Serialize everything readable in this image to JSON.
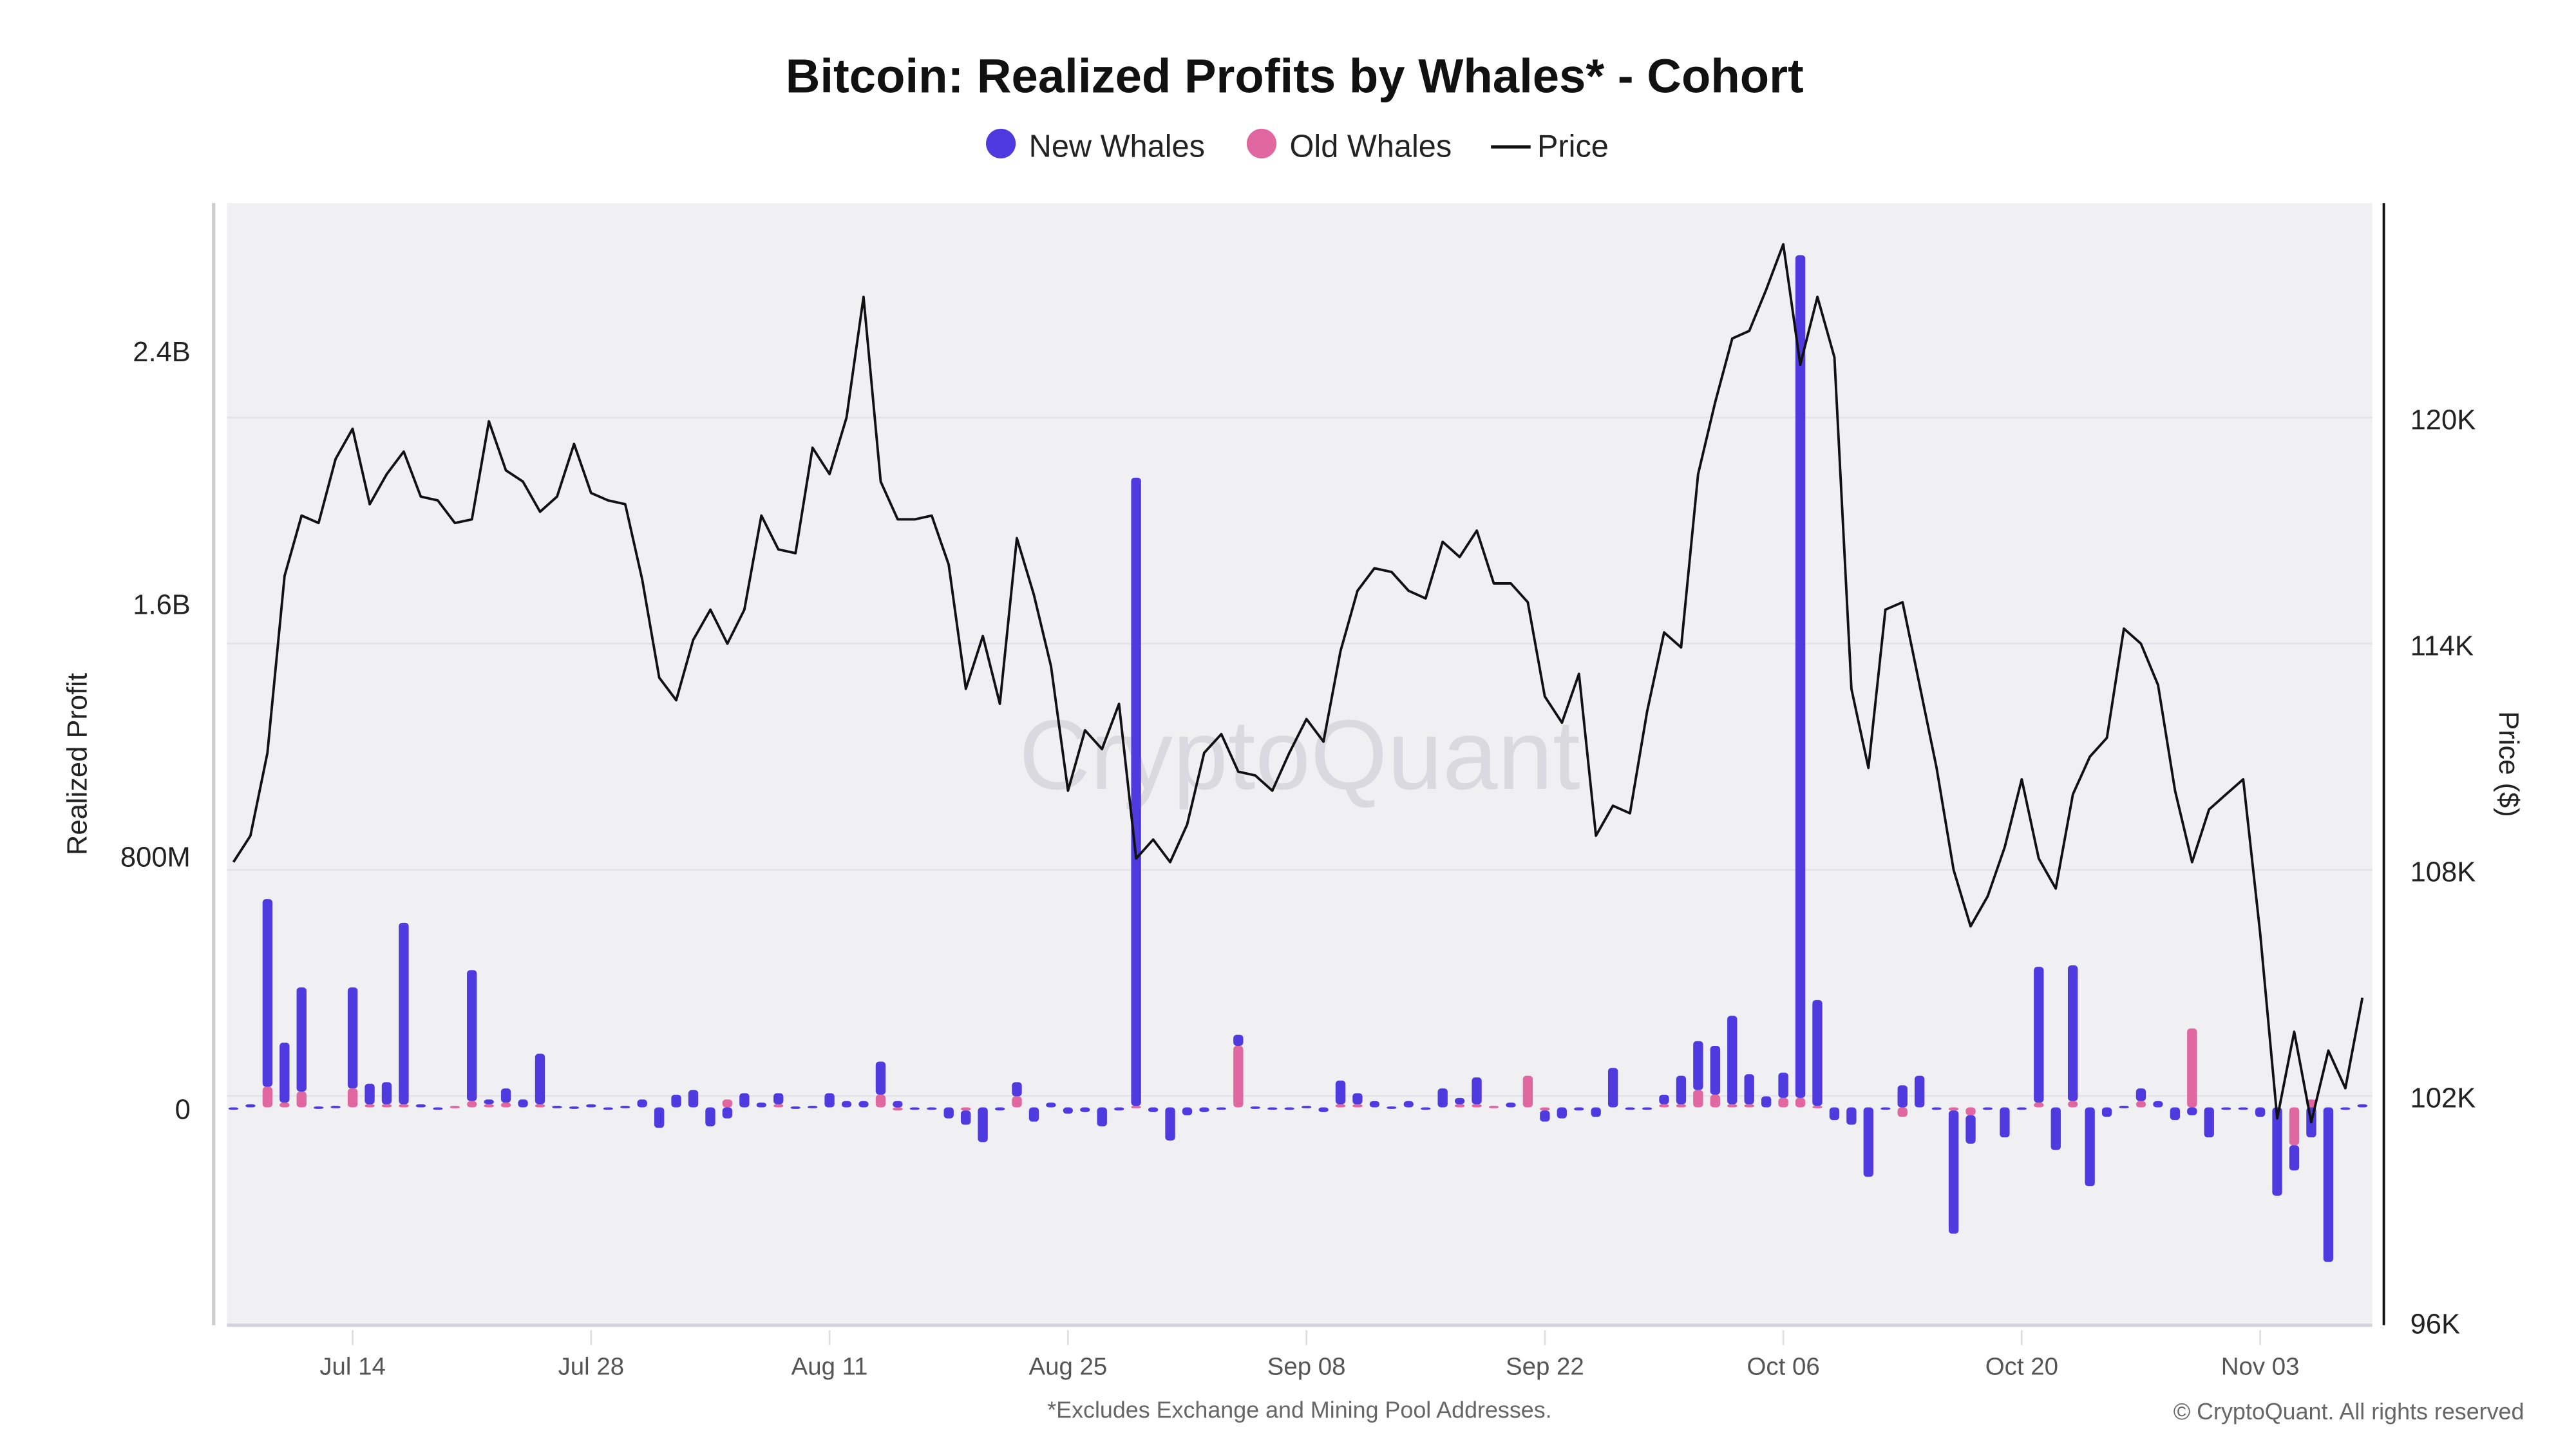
{
  "chart_data": {
    "type": "bar",
    "title": "Bitcoin: Realized Profits by Whales* - Cohort",
    "footnote": "*Excludes Exchange and Mining Pool Addresses.",
    "copyright": "© CryptoQuant. All rights reserved",
    "watermark": "CryptoQuant",
    "ylabel": "Realized Profit",
    "y2label": "Price ($)",
    "ylim": [
      -850,
      2900
    ],
    "y2lim": [
      96,
      125.8
    ],
    "yticks": [
      {
        "v": 0,
        "label": "0"
      },
      {
        "v": 800,
        "label": "800M"
      },
      {
        "v": 1600,
        "label": "1.6B"
      },
      {
        "v": 2400,
        "label": "2.4B"
      }
    ],
    "y2ticks": [
      {
        "v": 96,
        "label": "96K"
      },
      {
        "v": 102,
        "label": "102K"
      },
      {
        "v": 108,
        "label": "108K"
      },
      {
        "v": 114,
        "label": "114K"
      },
      {
        "v": 120,
        "label": "120K"
      }
    ],
    "xticks": [
      "Jul 14",
      "Jul 28",
      "Aug 11",
      "Aug 25",
      "Sep 08",
      "Sep 22",
      "Oct 06",
      "Oct 20",
      "Nov 03"
    ],
    "grid": true,
    "legend_placement": "top",
    "legend": [
      {
        "name": "New Whales",
        "marker": "dot",
        "color": "#4f3ae0"
      },
      {
        "name": "Old Whales",
        "marker": "dot",
        "color": "#e0679f"
      },
      {
        "name": "Price",
        "marker": "line",
        "color": "#111111"
      }
    ],
    "x": [
      "Jul 07",
      "Jul 08",
      "Jul 09",
      "Jul 10",
      "Jul 11",
      "Jul 12",
      "Jul 13",
      "Jul 14",
      "Jul 15",
      "Jul 16",
      "Jul 17",
      "Jul 18",
      "Jul 19",
      "Jul 20",
      "Jul 21",
      "Jul 22",
      "Jul 23",
      "Jul 24",
      "Jul 25",
      "Jul 26",
      "Jul 27",
      "Jul 28",
      "Jul 29",
      "Jul 30",
      "Jul 31",
      "Aug 01",
      "Aug 02",
      "Aug 03",
      "Aug 04",
      "Aug 05",
      "Aug 06",
      "Aug 07",
      "Aug 08",
      "Aug 09",
      "Aug 10",
      "Aug 11",
      "Aug 12",
      "Aug 13",
      "Aug 14",
      "Aug 15",
      "Aug 16",
      "Aug 17",
      "Aug 18",
      "Aug 19",
      "Aug 20",
      "Aug 21",
      "Aug 22",
      "Aug 23",
      "Aug 24",
      "Aug 25",
      "Aug 26",
      "Aug 27",
      "Aug 28",
      "Aug 29",
      "Aug 30",
      "Aug 31",
      "Sep 01",
      "Sep 02",
      "Sep 03",
      "Sep 04",
      "Sep 05",
      "Sep 06",
      "Sep 07",
      "Sep 08",
      "Sep 09",
      "Sep 10",
      "Sep 11",
      "Sep 12",
      "Sep 13",
      "Sep 14",
      "Sep 15",
      "Sep 16",
      "Sep 17",
      "Sep 18",
      "Sep 19",
      "Sep 20",
      "Sep 21",
      "Sep 22",
      "Sep 23",
      "Sep 24",
      "Sep 25",
      "Sep 26",
      "Sep 27",
      "Sep 28",
      "Sep 29",
      "Sep 30",
      "Oct 01",
      "Oct 02",
      "Oct 03",
      "Oct 04",
      "Oct 05",
      "Oct 06",
      "Oct 07",
      "Oct 08",
      "Oct 09",
      "Oct 10",
      "Oct 11",
      "Oct 12",
      "Oct 13",
      "Oct 14",
      "Oct 15",
      "Oct 16",
      "Oct 17",
      "Oct 18",
      "Oct 19",
      "Oct 20",
      "Oct 21",
      "Oct 22",
      "Oct 23",
      "Oct 24",
      "Oct 25",
      "Oct 26",
      "Oct 27",
      "Oct 28",
      "Oct 29",
      "Oct 30",
      "Oct 31",
      "Nov 01",
      "Nov 02",
      "Nov 03",
      "Nov 04",
      "Nov 05",
      "Nov 06",
      "Nov 07",
      "Nov 08",
      "Nov 09"
    ],
    "series": [
      {
        "name": "New Whales",
        "unit": "M USD",
        "color": "#4f3ae0",
        "values": [
          0,
          10,
          595,
          190,
          330,
          3,
          5,
          320,
          65,
          70,
          575,
          10,
          -3,
          0,
          415,
          15,
          45,
          25,
          160,
          5,
          3,
          10,
          0,
          5,
          25,
          -65,
          40,
          55,
          -60,
          -35,
          45,
          15,
          35,
          3,
          5,
          45,
          20,
          20,
          105,
          20,
          0,
          0,
          -35,
          -45,
          -110,
          -10,
          45,
          -45,
          15,
          -20,
          -15,
          -60,
          -10,
          1990,
          -15,
          -105,
          -25,
          -15,
          -5,
          35,
          3,
          0,
          0,
          5,
          -15,
          75,
          35,
          20,
          3,
          20,
          -5,
          60,
          20,
          85,
          0,
          15,
          0,
          -35,
          -35,
          -10,
          -30,
          125,
          0,
          0,
          30,
          90,
          155,
          155,
          280,
          95,
          35,
          80,
          2670,
          335,
          -40,
          -55,
          -220,
          0,
          70,
          100,
          -5,
          -390,
          -90,
          0,
          -95,
          0,
          430,
          -135,
          430,
          -250,
          -30,
          5,
          40,
          20,
          -40,
          -25,
          -95,
          0,
          0,
          -30,
          -280,
          -80,
          -95,
          -490,
          0,
          10
        ]
      },
      {
        "name": "Old Whales",
        "unit": "M USD",
        "color": "#e0679f",
        "values": [
          0,
          0,
          65,
          15,
          50,
          0,
          0,
          60,
          10,
          10,
          10,
          0,
          0,
          5,
          20,
          10,
          15,
          0,
          10,
          0,
          0,
          0,
          0,
          0,
          0,
          0,
          0,
          0,
          0,
          25,
          0,
          0,
          10,
          0,
          0,
          0,
          0,
          0,
          40,
          -10,
          0,
          0,
          0,
          -10,
          0,
          0,
          35,
          0,
          0,
          0,
          0,
          0,
          0,
          5,
          0,
          0,
          0,
          0,
          0,
          195,
          0,
          0,
          0,
          0,
          0,
          10,
          10,
          0,
          0,
          0,
          0,
          0,
          10,
          10,
          5,
          0,
          100,
          -10,
          0,
          0,
          0,
          0,
          0,
          0,
          10,
          10,
          55,
          40,
          10,
          10,
          0,
          30,
          30,
          5,
          0,
          0,
          0,
          0,
          -30,
          0,
          0,
          -10,
          -25,
          0,
          0,
          0,
          15,
          0,
          20,
          0,
          0,
          0,
          20,
          0,
          0,
          250,
          0,
          0,
          0,
          0,
          0,
          -120,
          25,
          0,
          0,
          0
        ]
      },
      {
        "name": "Price",
        "unit": "K USD",
        "axis": "right",
        "color": "#111111",
        "values": [
          108.2,
          108.9,
          111.1,
          115.8,
          117.4,
          117.2,
          118.9,
          119.7,
          117.7,
          118.5,
          119.1,
          117.9,
          117.8,
          117.2,
          117.3,
          119.9,
          118.6,
          118.3,
          117.5,
          117.9,
          119.3,
          118.0,
          117.8,
          117.7,
          115.7,
          113.1,
          112.5,
          114.1,
          114.9,
          114.0,
          114.9,
          117.4,
          116.5,
          116.4,
          119.2,
          118.5,
          120.0,
          123.2,
          118.3,
          117.3,
          117.3,
          117.4,
          116.1,
          112.8,
          114.2,
          112.4,
          116.8,
          115.3,
          113.4,
          110.1,
          111.7,
          111.2,
          112.4,
          108.3,
          108.8,
          108.2,
          109.2,
          111.1,
          111.6,
          110.6,
          110.5,
          110.1,
          111.1,
          112.0,
          111.4,
          113.8,
          115.4,
          116.0,
          115.9,
          115.4,
          115.2,
          116.7,
          116.3,
          117.0,
          115.6,
          115.6,
          115.1,
          112.6,
          111.9,
          113.2,
          108.9,
          109.7,
          109.5,
          112.2,
          114.3,
          113.9,
          118.5,
          120.4,
          122.1,
          122.3,
          123.4,
          124.6,
          121.4,
          123.2,
          121.6,
          112.8,
          110.7,
          114.9,
          115.1,
          112.9,
          110.7,
          108.0,
          106.5,
          107.3,
          108.6,
          110.4,
          108.3,
          107.5,
          110.0,
          111.0,
          111.5,
          114.4,
          114.0,
          112.9,
          110.1,
          108.2,
          109.6,
          110.0,
          110.4,
          106.3,
          101.4,
          103.7,
          101.3,
          103.2,
          102.2,
          104.6
        ]
      }
    ]
  }
}
